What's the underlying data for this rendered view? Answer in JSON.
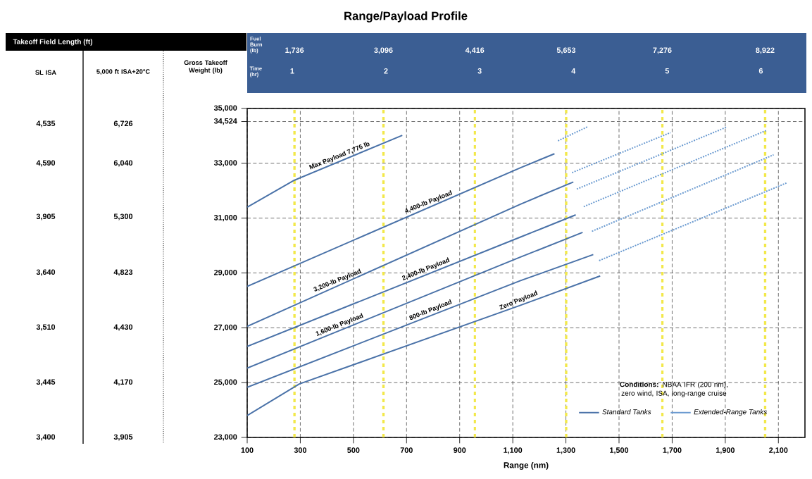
{
  "chart_data": [
    {
      "type": "line",
      "title": "Range/Payload Profile",
      "xlabel": "Range (nm)",
      "ylabel": "Gross Takeoff Weight (lb)",
      "x2label": "Time (hr)",
      "legend_title": "**Conditions:** NBAA IFR (200 nm), zero wind, ISA, long-range cruise",
      "xlim": [
        100,
        2200
      ],
      "ylim": [
        23000,
        35000
      ],
      "x2lim": [
        0.52,
        6.47
      ],
      "xticks": [
        100,
        300,
        500,
        700,
        900,
        {
          "value": 1100,
          "label": "1,100"
        },
        {
          "value": 1300,
          "label": "1,300"
        },
        {
          "value": 1500,
          "label": "1,500"
        },
        {
          "value": 1700,
          "label": "1,700"
        },
        {
          "value": 1900,
          "label": "1,900"
        },
        {
          "value": 2100,
          "label": "2,100"
        }
      ],
      "yticks": [
        {
          "value": 23000,
          "label": "23,000"
        },
        {
          "value": 25000,
          "label": "25,000"
        },
        {
          "value": 27000,
          "label": "27,000"
        },
        {
          "value": 29000,
          "label": "29,000"
        },
        {
          "value": 31000,
          "label": "31,000"
        },
        {
          "value": 33000,
          "label": "33,000"
        },
        {
          "value": 34524,
          "label": "34,524"
        },
        {
          "value": 35000,
          "label": "35,000"
        }
      ],
      "x2ticks": [
        1,
        2,
        3,
        4,
        5,
        6
      ],
      "ref_lines": [
        {
          "axis": "x",
          "value": 278,
          "color": "#f2e84a",
          "line_style": "dashed"
        },
        {
          "axis": "x",
          "value": 613,
          "color": "#f2e84a",
          "line_style": "dashed"
        },
        {
          "axis": "x",
          "value": 957,
          "color": "#f2e84a",
          "line_style": "dashed"
        },
        {
          "axis": "x",
          "value": 1301,
          "color": "#f2e84a",
          "line_style": "dashed"
        },
        {
          "axis": "x",
          "value": 1663,
          "color": "#f2e84a",
          "line_style": "dashed"
        },
        {
          "axis": "x",
          "value": 2050,
          "color": "#f2e84a",
          "line_style": "dashed"
        }
      ],
      "series": [
        {
          "name": "Standard Tanks",
          "color": "#4a72a8",
          "line_style": "solid",
          "x": [
            100,
            277,
            684,
            null,
            100,
            1129,
            1257,
            null,
            100,
            1129,
            1328,
            null,
            100,
            1129,
            1337,
            null,
            100,
            1129,
            1363,
            null,
            100,
            1129,
            1403,
            null,
            100,
            296,
            1129,
            1429
          ],
          "values": [
            31400,
            32380,
            34020,
            null,
            28510,
            32840,
            33350,
            null,
            27050,
            31510,
            32320,
            null,
            26320,
            30310,
            31120,
            null,
            25530,
            29580,
            30480,
            null,
            24830,
            28720,
            29670,
            null,
            23800,
            24950,
            27820,
            28890
          ]
        },
        {
          "name": "Extended-Range Tanks",
          "color": "#6a9ad0",
          "line_style": "dotted",
          "x": [
            1270,
            1381,
            null,
            1323,
            1694,
            null,
            1341,
            1905,
            null,
            1367,
            2055,
            null,
            1398,
            2082,
            null,
            1425,
            2130
          ],
          "values": [
            33820,
            34330,
            null,
            32660,
            34120,
            null,
            32060,
            34320,
            null,
            31420,
            34200,
            null,
            30520,
            33310,
            null,
            29450,
            32280
          ]
        }
      ],
      "annotations": [
        {
          "text": "Max Payload 7,776 lb",
          "x": 455,
          "y": 33100
        },
        {
          "text": "4,400-lb Payload",
          "x": 790,
          "y": 31410
        },
        {
          "text": "3,200-lb Payload",
          "x": 447,
          "y": 28550
        },
        {
          "text": "2,400-lb Payload",
          "x": 780,
          "y": 28960
        },
        {
          "text": "1,600-lb Payload",
          "x": 455,
          "y": 26930
        },
        {
          "text": "800-lb Payload",
          "x": 798,
          "y": 27470
        },
        {
          "text": "Zero Payload",
          "x": 1129,
          "y": 27820
        }
      ],
      "grid": true,
      "legend": "bottom right"
    },
    {
      "type": "other",
      "title": "Takeoff Field Length (ft)",
      "annotations": [
        "SL ISA",
        "4,535",
        "4,590",
        "3,905",
        "3,640",
        "3,510",
        "3,445",
        "3,400",
        "5,000 ft ISA+20°C",
        "6,726",
        "6,040",
        "5,300",
        "4,823",
        "4,430",
        "4,170",
        "3,905"
      ]
    },
    {
      "type": "other",
      "annotations": [
        "Fuel Burn (lb)",
        "1,736",
        "3,096",
        "4,416",
        "5,653",
        "7,276",
        "8,922"
      ]
    }
  ]
}
